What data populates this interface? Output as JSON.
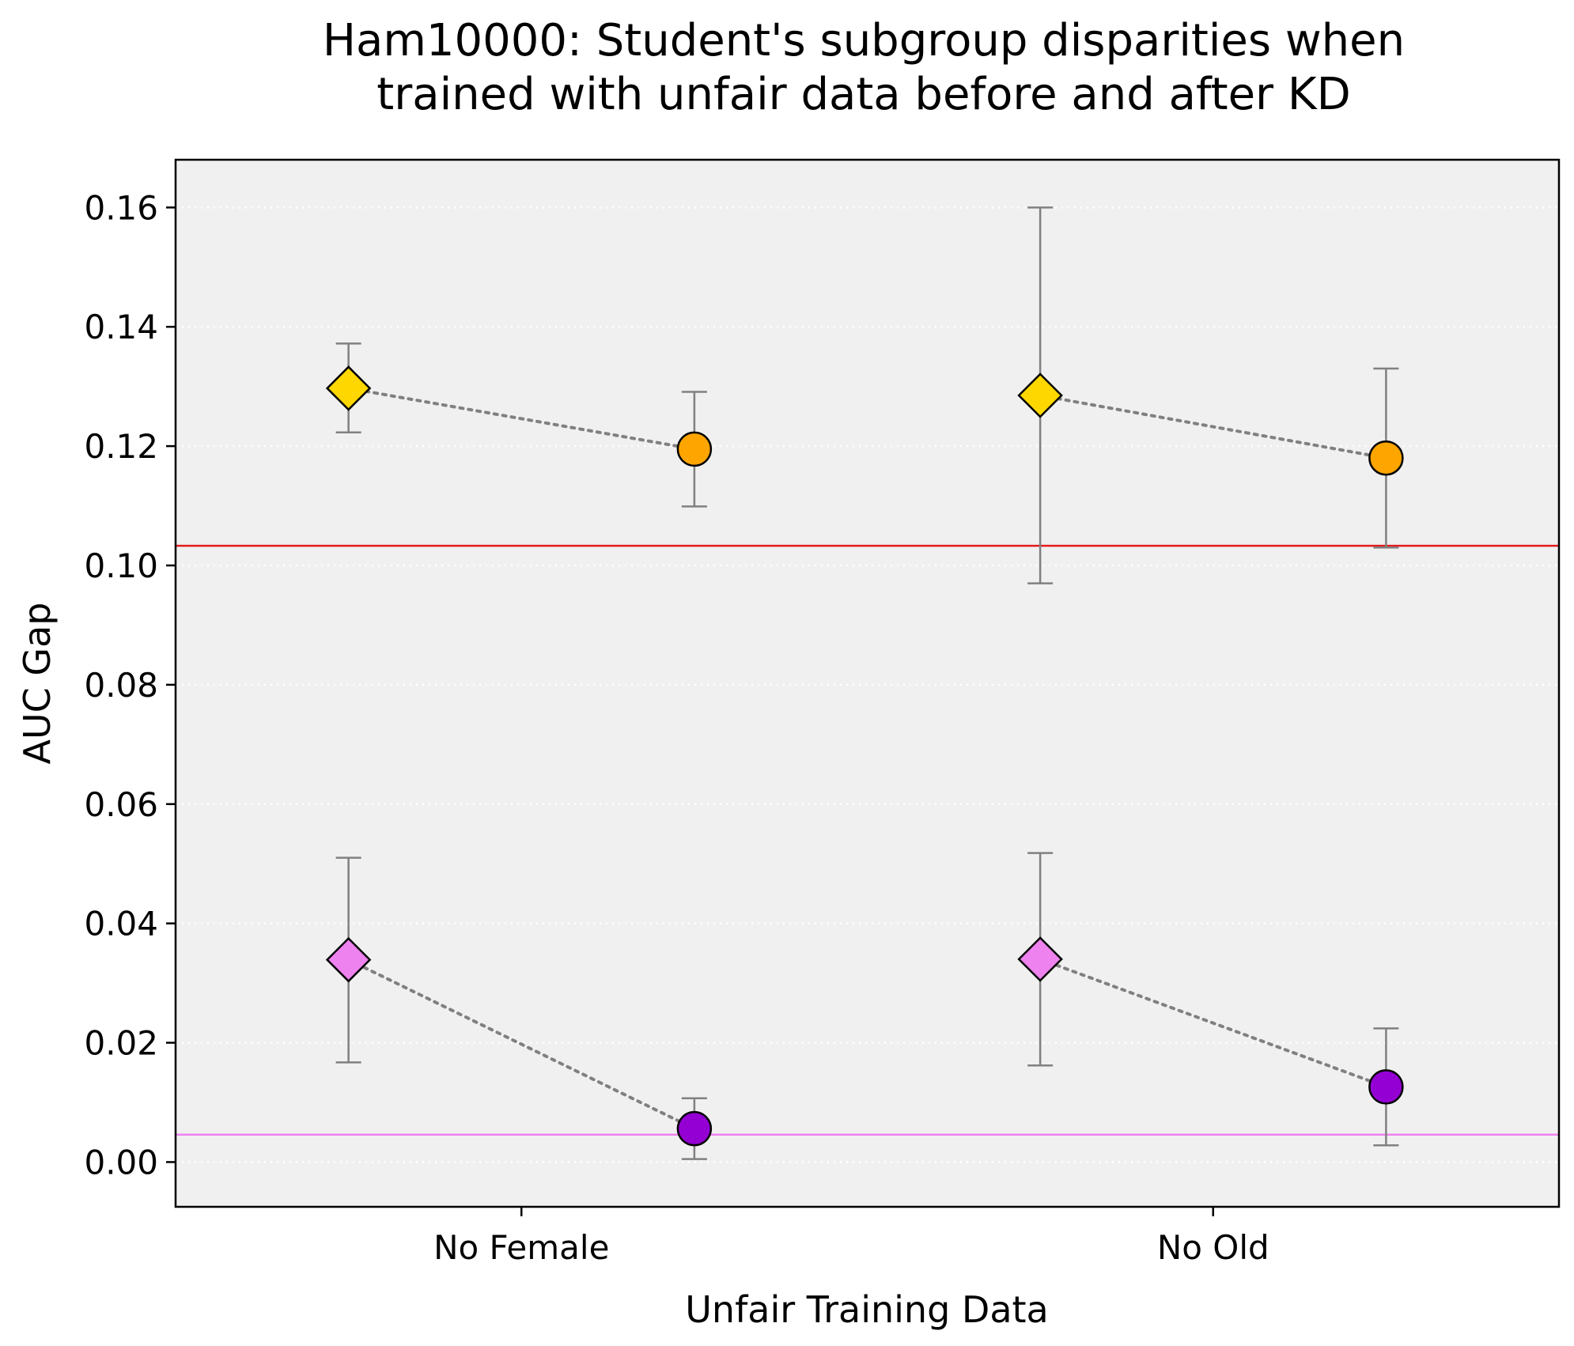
{
  "chart_data": {
    "type": "scatter",
    "title_lines": [
      "Ham10000: Student's subgroup disparities when",
      "trained with unfair data before and after KD"
    ],
    "xlabel": "Unfair Training Data",
    "ylabel": "AUC Gap",
    "categories": [
      "No Female",
      "No Old"
    ],
    "ylim": [
      -0.0075,
      0.168
    ],
    "yticks": [
      0.0,
      0.02,
      0.04,
      0.06,
      0.08,
      0.1,
      0.12,
      0.14,
      0.16
    ],
    "ytick_labels": [
      "0.00",
      "0.02",
      "0.04",
      "0.06",
      "0.08",
      "0.10",
      "0.12",
      "0.14",
      "0.16"
    ],
    "grid": "horizontal dotted",
    "background_color": "#f0f0f0",
    "reference_lines": [
      {
        "y": 0.1033,
        "color": "#e41a1c"
      },
      {
        "y": 0.0046,
        "color": "#ee82ee"
      }
    ],
    "pairs": [
      {
        "category": "No Female",
        "before": {
          "offset": -0.25,
          "y": 0.1297,
          "err_low": 0.1223,
          "err_high": 0.1372,
          "marker": "diamond",
          "color": "#ffd700"
        },
        "after": {
          "offset": 0.25,
          "y": 0.1195,
          "err_low": 0.1099,
          "err_high": 0.1291,
          "marker": "circle",
          "color": "#ffa500"
        }
      },
      {
        "category": "No Old",
        "before": {
          "offset": -0.25,
          "y": 0.1285,
          "err_low": 0.097,
          "err_high": 0.16,
          "marker": "diamond",
          "color": "#ffd700"
        },
        "after": {
          "offset": 0.25,
          "y": 0.118,
          "err_low": 0.103,
          "err_high": 0.133,
          "marker": "circle",
          "color": "#ffa500"
        }
      },
      {
        "category": "No Female",
        "before": {
          "offset": -0.25,
          "y": 0.0339,
          "err_low": 0.0167,
          "err_high": 0.051,
          "marker": "diamond",
          "color": "#ee82ee"
        },
        "after": {
          "offset": 0.25,
          "y": 0.0056,
          "err_low": 0.0005,
          "err_high": 0.0107,
          "marker": "circle",
          "color": "#9400d3"
        }
      },
      {
        "category": "No Old",
        "before": {
          "offset": -0.25,
          "y": 0.034,
          "err_low": 0.0162,
          "err_high": 0.0518,
          "marker": "diamond",
          "color": "#ee82ee"
        },
        "after": {
          "offset": 0.25,
          "y": 0.0126,
          "err_low": 0.0028,
          "err_high": 0.0224,
          "marker": "circle",
          "color": "#9400d3"
        }
      }
    ],
    "error_bar_color": "#808080",
    "connector_color": "#808080"
  }
}
